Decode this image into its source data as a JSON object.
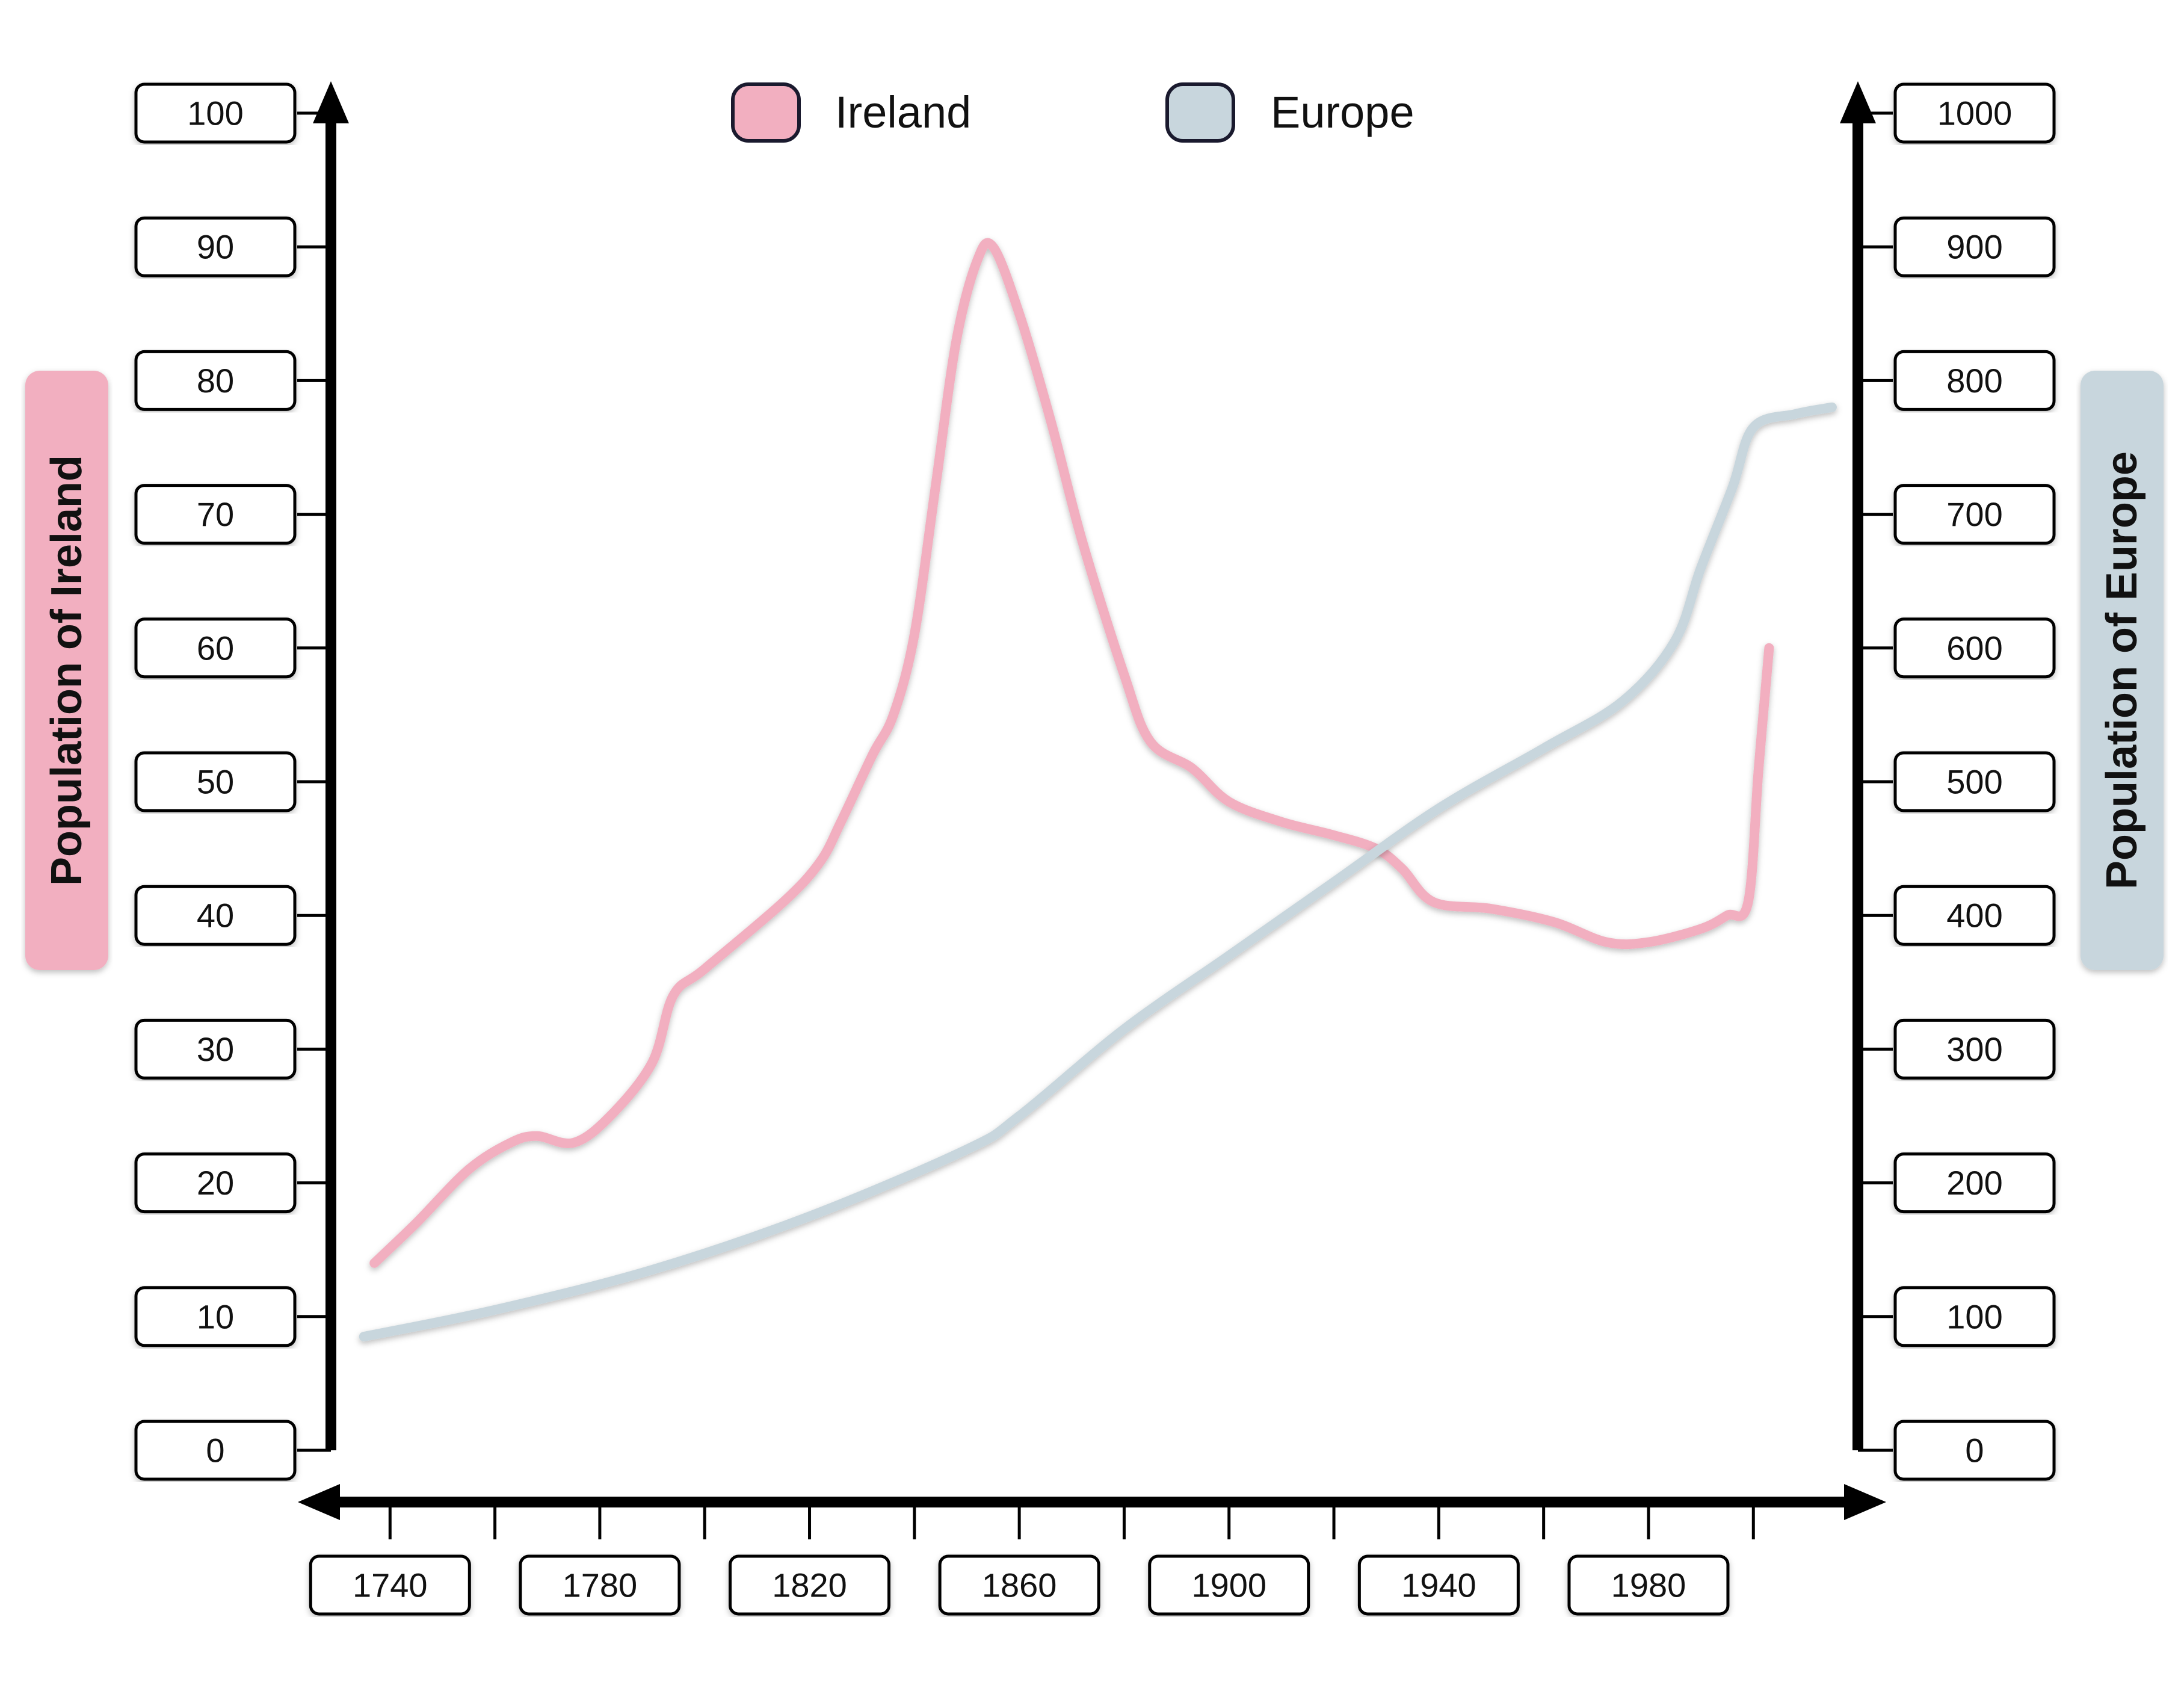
{
  "chart_data": {
    "type": "line",
    "title": "",
    "xlabel": "",
    "xlim": [
      1727,
      2015
    ],
    "x_ticks": [
      1740,
      1780,
      1820,
      1860,
      1900,
      1940,
      1980
    ],
    "y_left": {
      "label": "Population of Ireland",
      "ylim": [
        0,
        100
      ],
      "ticks": [
        0,
        10,
        20,
        30,
        40,
        50,
        60,
        70,
        80,
        90,
        100
      ]
    },
    "y_right": {
      "label": "Population of Europe",
      "ylim": [
        0,
        1000
      ],
      "ticks": [
        0,
        100,
        200,
        300,
        400,
        500,
        600,
        700,
        800,
        900,
        1000
      ]
    },
    "legend": {
      "position": "top-center"
    },
    "series": [
      {
        "name": "Ireland",
        "axis": "left",
        "color": "#f2afc0",
        "points": [
          [
            1737,
            14
          ],
          [
            1745,
            17
          ],
          [
            1755,
            21
          ],
          [
            1763,
            23
          ],
          [
            1768,
            23.5
          ],
          [
            1775,
            23
          ],
          [
            1782,
            25
          ],
          [
            1790,
            29
          ],
          [
            1794,
            34
          ],
          [
            1800,
            36
          ],
          [
            1815,
            41
          ],
          [
            1822,
            44
          ],
          [
            1826,
            47
          ],
          [
            1832,
            52
          ],
          [
            1836,
            55
          ],
          [
            1840,
            61
          ],
          [
            1844,
            72
          ],
          [
            1848,
            83
          ],
          [
            1852,
            89
          ],
          [
            1855,
            90
          ],
          [
            1860,
            85
          ],
          [
            1866,
            77
          ],
          [
            1872,
            68
          ],
          [
            1880,
            58
          ],
          [
            1885,
            53
          ],
          [
            1893,
            51
          ],
          [
            1900,
            48.5
          ],
          [
            1910,
            47
          ],
          [
            1920,
            46
          ],
          [
            1928,
            45
          ],
          [
            1933,
            43.5
          ],
          [
            1939,
            41
          ],
          [
            1950,
            40.5
          ],
          [
            1962,
            39.5
          ],
          [
            1972,
            38
          ],
          [
            1980,
            38
          ],
          [
            1990,
            39
          ],
          [
            1995,
            40
          ],
          [
            1999,
            41
          ],
          [
            2001,
            51
          ],
          [
            2003,
            60
          ]
        ]
      },
      {
        "name": "Europe",
        "axis": "right",
        "color": "#c8d6dd",
        "points": [
          [
            1735,
            85
          ],
          [
            1760,
            105
          ],
          [
            1790,
            135
          ],
          [
            1820,
            175
          ],
          [
            1850,
            225
          ],
          [
            1860,
            250
          ],
          [
            1880,
            315
          ],
          [
            1900,
            370
          ],
          [
            1920,
            425
          ],
          [
            1940,
            480
          ],
          [
            1960,
            525
          ],
          [
            1975,
            560
          ],
          [
            1985,
            605
          ],
          [
            1990,
            660
          ],
          [
            1996,
            720
          ],
          [
            2000,
            765
          ],
          [
            2008,
            775
          ],
          [
            2015,
            780
          ]
        ]
      }
    ]
  }
}
